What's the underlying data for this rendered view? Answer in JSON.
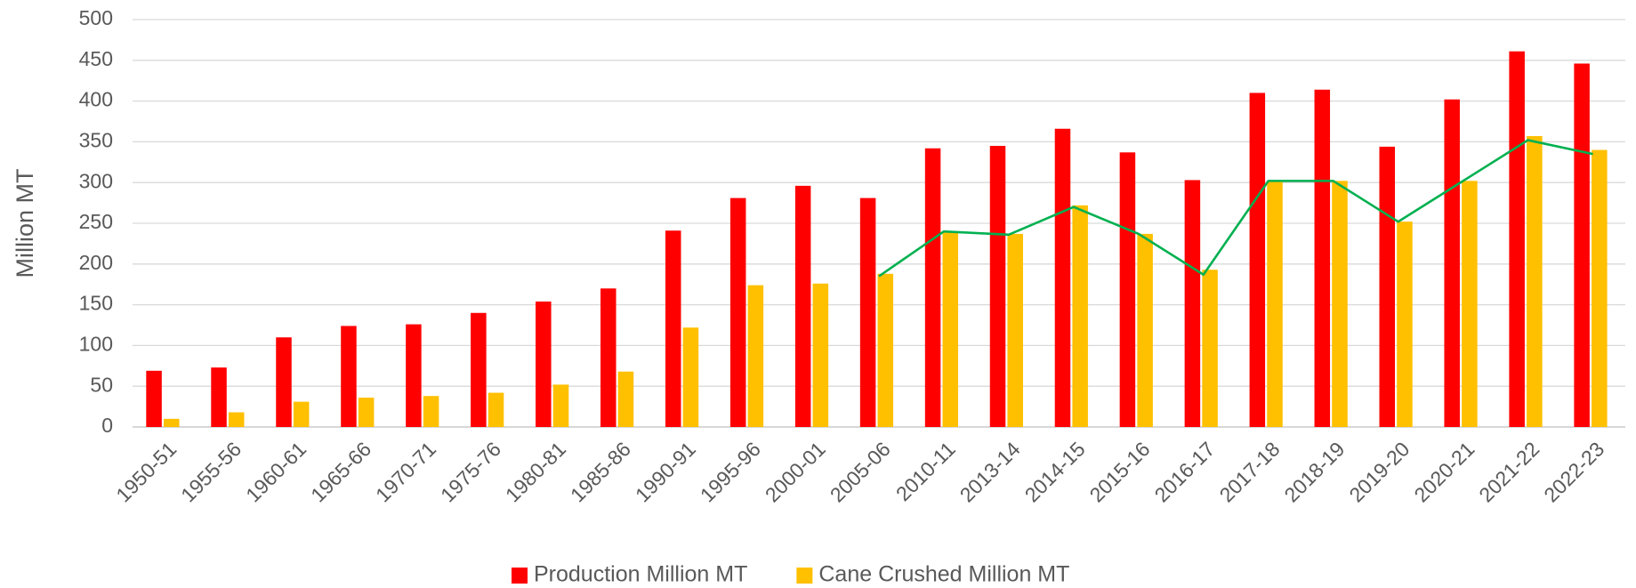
{
  "chart_data": {
    "type": "bar",
    "y_label": "Million MT",
    "categories": [
      "1950-51",
      "1955-56",
      "1960-61",
      "1965-66",
      "1970-71",
      "1975-76",
      "1980-81",
      "1985-86",
      "1990-91",
      "1995-96",
      "2000-01",
      "2005-06",
      "2010-11",
      "2013-14",
      "2014-15",
      "2015-16",
      "2016-17",
      "2017-18",
      "2018-19",
      "2019-20",
      "2020-21",
      "2021-22",
      "2022-23"
    ],
    "series": [
      {
        "name": "Production Million MT",
        "color": "#ff0000",
        "values": [
          69,
          73,
          110,
          124,
          126,
          140,
          154,
          170,
          241,
          281,
          296,
          281,
          342,
          345,
          366,
          337,
          303,
          410,
          414,
          344,
          402,
          461,
          446
        ]
      },
      {
        "name": "Cane Crushed Million MT",
        "color": "#ffc000",
        "values": [
          10,
          18,
          31,
          36,
          38,
          42,
          52,
          68,
          122,
          174,
          176,
          188,
          240,
          237,
          272,
          237,
          193,
          302,
          302,
          252,
          302,
          357,
          340
        ]
      },
      {
        "type": "line",
        "color": "#00b050",
        "values": [
          null,
          null,
          null,
          null,
          null,
          null,
          null,
          null,
          null,
          null,
          null,
          185,
          240,
          236,
          270,
          237,
          187,
          302,
          302,
          252,
          302,
          352,
          335
        ]
      }
    ],
    "ylim": [
      0,
      500
    ],
    "yticks": [
      0,
      50,
      100,
      150,
      200,
      250,
      300,
      350,
      400,
      450,
      500
    ],
    "grid": true,
    "legend": "bottom"
  }
}
